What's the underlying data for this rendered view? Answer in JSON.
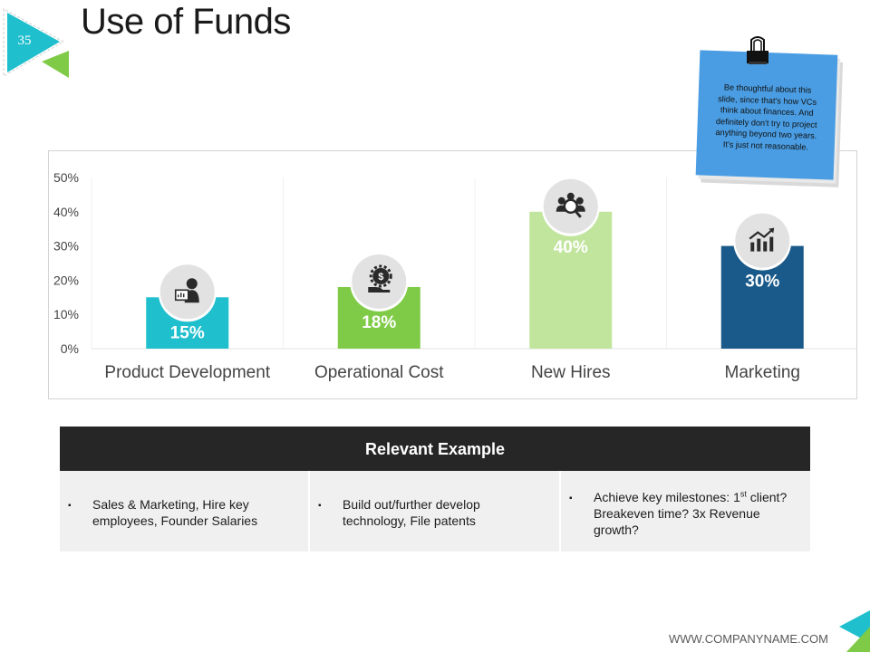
{
  "slide": {
    "number": "35",
    "title": "Use of Funds"
  },
  "note": {
    "text": "Be thoughtful about this slide, since that's how VCs think about finances. And definitely don't try to project anything beyond two years. It's just not reasonable."
  },
  "chart_data": {
    "type": "bar",
    "categories": [
      "Product Development",
      "Operational Cost",
      "New Hires",
      "Marketing"
    ],
    "values": [
      15,
      18,
      40,
      30
    ],
    "value_labels": [
      "15%",
      "18%",
      "40%",
      "30%"
    ],
    "bar_colors": [
      "#1fbfcd",
      "#7fcb47",
      "#c2e59e",
      "#1a5a8a"
    ],
    "category_icons": [
      "presenter-icon",
      "money-gear-icon",
      "people-search-icon",
      "growth-chart-icon"
    ],
    "yticks": [
      "0%",
      "10%",
      "20%",
      "30%",
      "40%",
      "50%"
    ],
    "ylim": [
      0,
      50
    ],
    "grid": "vertical separators",
    "title": "",
    "xlabel": "",
    "ylabel": ""
  },
  "table": {
    "header": "Relevant Example",
    "cells": [
      {
        "text": "Sales & Marketing, Hire key employees, Founder Salaries"
      },
      {
        "text": "Build out/further develop technology, File patents"
      },
      {
        "pre": "Achieve key milestones: 1",
        "sup": "st",
        "post": " client? Breakeven time? 3x Revenue growth?"
      }
    ]
  },
  "footer": {
    "url": "WWW.COMPANYNAME.COM"
  },
  "colors": {
    "teal": "#1fbfcd",
    "green": "#7fcb47",
    "dark": "#262626",
    "note_blue": "#4a9de3"
  }
}
